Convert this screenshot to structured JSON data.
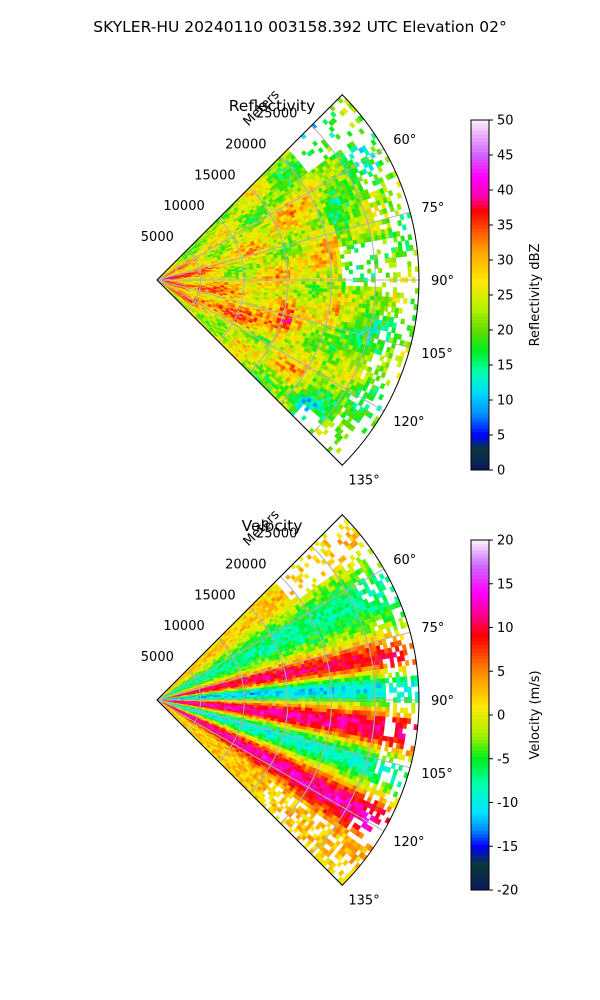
{
  "figure": {
    "title": "SKYLER-HU  20240110  003158.392 UTC Elevation 02°"
  },
  "chart_data": [
    {
      "type": "heatmap",
      "title": "Reflectivity",
      "range_label": "Meters",
      "range_ticks": [
        5000,
        10000,
        15000,
        20000,
        25000
      ],
      "range_max": 30000,
      "azimuth_ticks": [
        "60°",
        "75°",
        "90°",
        "105°",
        "120°",
        "135°"
      ],
      "azimuth_range_deg": [
        45,
        135
      ],
      "grid": true,
      "colorbar": {
        "label": "Reflectivity dBZ",
        "range": [
          0,
          50
        ],
        "ticks": [
          0,
          5,
          10,
          15,
          20,
          25,
          30,
          35,
          40,
          45,
          50
        ]
      },
      "stops": [
        {
          "v": 0,
          "c": "#0a1a5a"
        },
        {
          "v": 3,
          "c": "#0a3a3a"
        },
        {
          "v": 5,
          "c": "#0000ff"
        },
        {
          "v": 8,
          "c": "#0090ff"
        },
        {
          "v": 11,
          "c": "#00d8ff"
        },
        {
          "v": 14,
          "c": "#00ffb0"
        },
        {
          "v": 17,
          "c": "#00ee20"
        },
        {
          "v": 20,
          "c": "#60dc00"
        },
        {
          "v": 23,
          "c": "#b4f000"
        },
        {
          "v": 27,
          "c": "#ffe800"
        },
        {
          "v": 31,
          "c": "#ffaa00"
        },
        {
          "v": 34,
          "c": "#ff5a00"
        },
        {
          "v": 37,
          "c": "#ff0000"
        },
        {
          "v": 39,
          "c": "#ff00aa"
        },
        {
          "v": 42,
          "c": "#ff00ff"
        },
        {
          "v": 45,
          "c": "#cc66ff"
        },
        {
          "v": 48,
          "c": "#f0b0f8"
        },
        {
          "v": 50,
          "c": "#fff0ff"
        }
      ]
    },
    {
      "type": "heatmap",
      "title": "Velocity",
      "range_label": "Meters",
      "range_ticks": [
        5000,
        10000,
        15000,
        20000,
        25000
      ],
      "range_max": 30000,
      "azimuth_ticks": [
        "60°",
        "75°",
        "90°",
        "105°",
        "120°",
        "135°"
      ],
      "azimuth_range_deg": [
        45,
        135
      ],
      "grid": true,
      "colorbar": {
        "label": "Velocity (m/s)",
        "range": [
          -20,
          20
        ],
        "ticks": [
          -20,
          -15,
          -10,
          -5,
          0,
          5,
          10,
          15,
          20
        ]
      },
      "stops": [
        {
          "v": -20,
          "c": "#0a1a5a"
        },
        {
          "v": -17,
          "c": "#0a3a3a"
        },
        {
          "v": -15,
          "c": "#0000ff"
        },
        {
          "v": -13,
          "c": "#0090ff"
        },
        {
          "v": -11,
          "c": "#00e8ff"
        },
        {
          "v": -8,
          "c": "#00ffb0"
        },
        {
          "v": -5,
          "c": "#00ee20"
        },
        {
          "v": -2,
          "c": "#b4f000"
        },
        {
          "v": 1,
          "c": "#ffe800"
        },
        {
          "v": 5,
          "c": "#ff8800"
        },
        {
          "v": 9,
          "c": "#ff0000"
        },
        {
          "v": 12,
          "c": "#ff00aa"
        },
        {
          "v": 14,
          "c": "#ff00ff"
        },
        {
          "v": 17,
          "c": "#cc66ff"
        },
        {
          "v": 20,
          "c": "#fff0ff"
        }
      ]
    }
  ]
}
